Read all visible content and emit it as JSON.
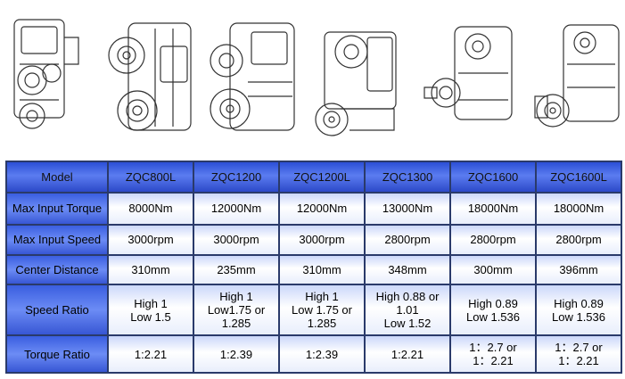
{
  "drawings": [
    {
      "name": "ZQC800L",
      "icon": "gearbox-drawing-1"
    },
    {
      "name": "ZQC1200",
      "icon": "gearbox-drawing-2"
    },
    {
      "name": "ZQC1200L",
      "icon": "gearbox-drawing-3"
    },
    {
      "name": "ZQC1300",
      "icon": "gearbox-drawing-4"
    },
    {
      "name": "ZQC1600",
      "icon": "gearbox-drawing-5"
    },
    {
      "name": "ZQC1600L",
      "icon": "gearbox-drawing-6"
    }
  ],
  "table": {
    "header": [
      "Model",
      "ZQC800L",
      "ZQC1200",
      "ZQC1200L",
      "ZQC1300",
      "ZQC1600",
      "ZQC1600L"
    ],
    "rows": [
      {
        "label": "Max Input Torque",
        "values": [
          "8000Nm",
          "12000Nm",
          "12000Nm",
          "13000Nm",
          "18000Nm",
          "18000Nm"
        ]
      },
      {
        "label": "Max Input Speed",
        "values": [
          "3000rpm",
          "3000rpm",
          "3000rpm",
          "2800rpm",
          "2800rpm",
          "2800rpm"
        ]
      },
      {
        "label": "Center Distance",
        "values": [
          "310mm",
          "235mm",
          "310mm",
          "348mm",
          "300mm",
          "396mm"
        ]
      },
      {
        "label": "Speed Ratio",
        "values": [
          "High 1\nLow 1.5",
          "High 1\nLow1.75 or\n1.285",
          "High 1\nLow 1.75 or\n1.285",
          "High 0.88 or\n1.01\nLow 1.52",
          "High 0.89\nLow 1.536",
          "High 0.89\nLow 1.536"
        ]
      },
      {
        "label": "Torque Ratio",
        "values": [
          "1:2.21",
          "1:2.39",
          "1:2.39",
          "1:2.21",
          "1：2.7 or\n1：2.21",
          "1：2.7 or\n1：2.21"
        ]
      }
    ]
  },
  "colors": {
    "header": "#4a6ae8",
    "cell_light": "#e8eefc",
    "border": "#2a3a6a"
  }
}
